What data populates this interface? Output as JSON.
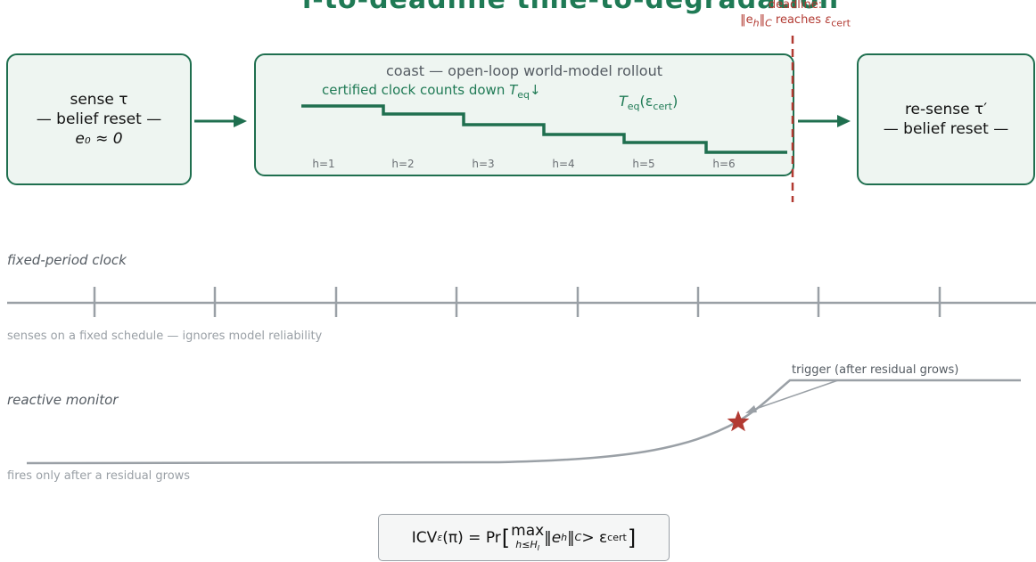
{
  "title_partial": "l-to-deadline time-to-degradation",
  "deadline": {
    "line1": "deadline:",
    "line2_norm": "‖e",
    "line2_sub": "h",
    "line2_norm_close": "‖",
    "line2_c": "C",
    "line2_reaches": " reaches ",
    "line2_eps": "ε",
    "line2_eps_sub": "cert"
  },
  "sense_box": {
    "line1": "sense τ",
    "line2": "— belief reset —",
    "line3": "e₀ ≈ 0"
  },
  "coast_box": {
    "title": "coast — open-loop world-model rollout",
    "clock_text": "certified clock counts down ",
    "clock_T": "T",
    "clock_sub": "eq",
    "clock_arrow": "↓",
    "teq_T": "T",
    "teq_sub": "eq",
    "teq_arg": "(ε",
    "teq_arg_sub": "cert",
    "teq_close": ")",
    "h_labels": [
      "h=1",
      "h=2",
      "h=3",
      "h=4",
      "h=5",
      "h=6"
    ]
  },
  "resense_box": {
    "line1": "re-sense τ′",
    "line2": "— belief reset —"
  },
  "fixed_clock": {
    "label": "fixed-period clock",
    "caption": "senses on a fixed schedule — ignores model reliability"
  },
  "reactive": {
    "label": "reactive monitor",
    "trigger": "trigger (after residual grows)",
    "caption": "fires only after a residual grows"
  },
  "formula": {
    "lhs": "ICV",
    "lhs_sub": "ε",
    "lhs_arg": "(π) = Pr",
    "max": "max",
    "max_sub": "h≤H",
    "max_sub_sub": "I",
    "norm": "‖e",
    "norm_sub": "h",
    "norm_close": "‖",
    "norm_c": "C",
    "gt": " > ε",
    "gt_sub": "cert"
  },
  "colors": {
    "green": "#1f7a55",
    "box_fill": "#eef5f1",
    "red": "#b23a32",
    "gray_line": "#9aa0a6",
    "star": "#b23a32"
  }
}
